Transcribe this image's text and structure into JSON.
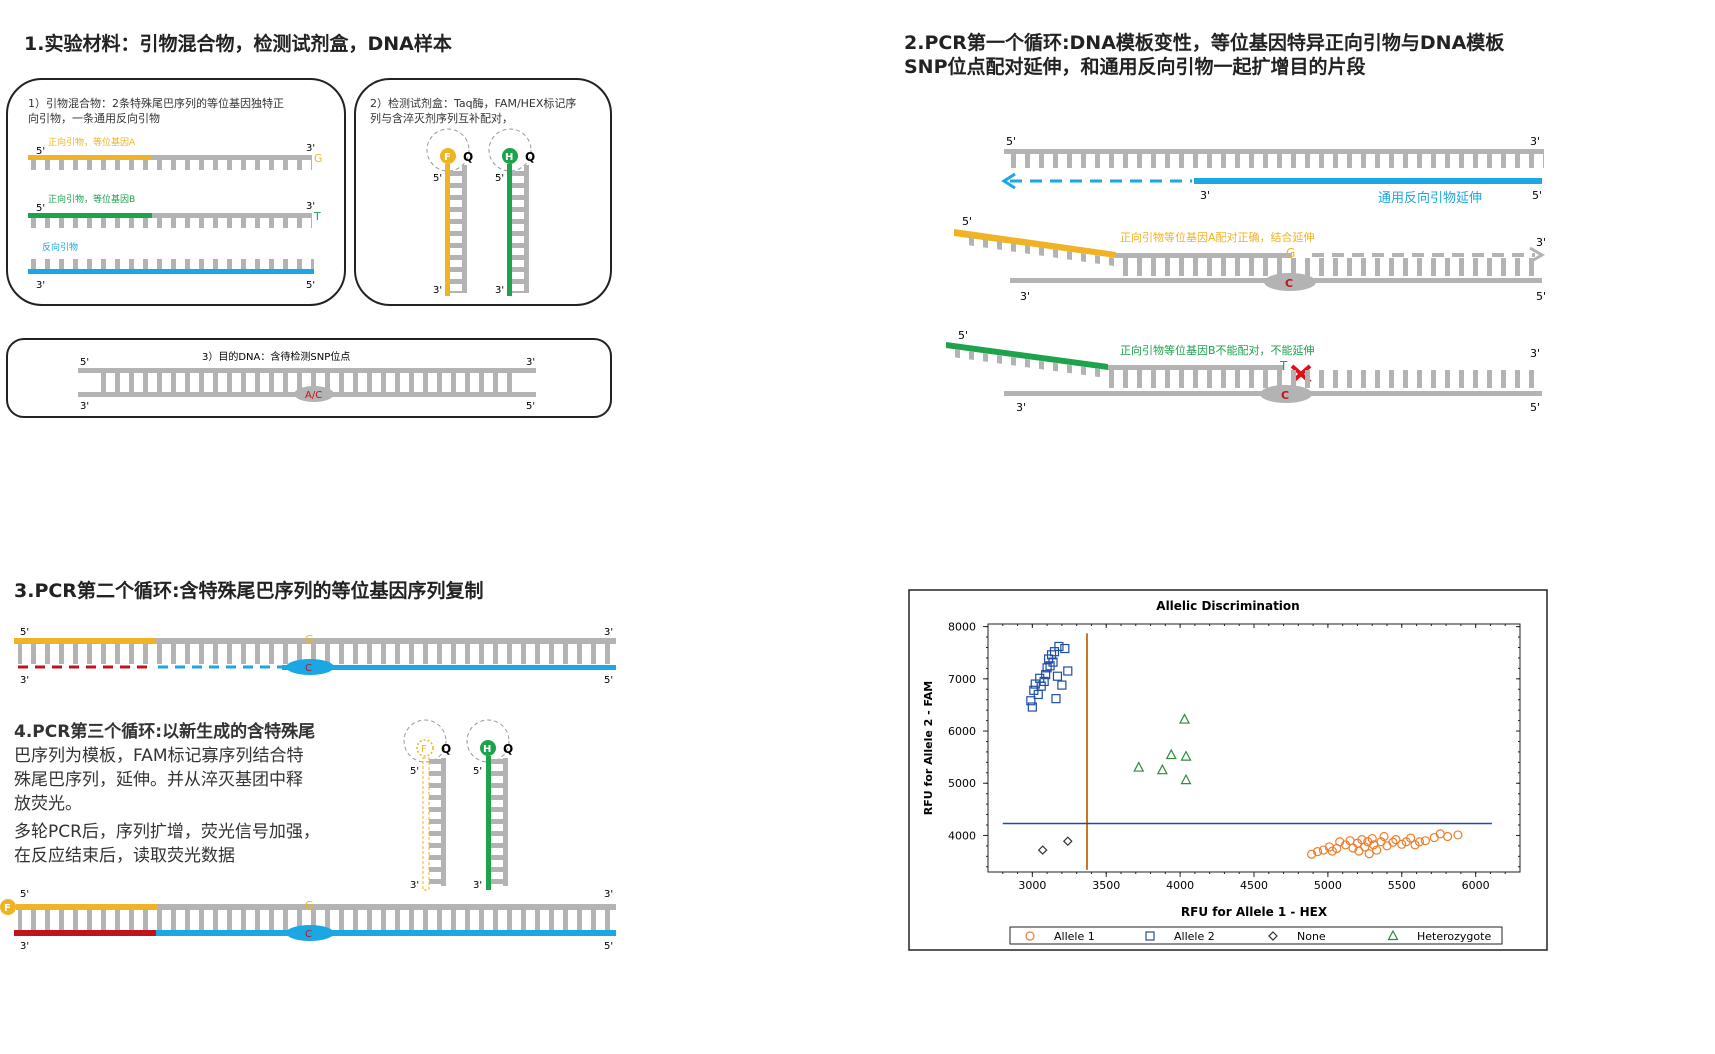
{
  "section1": {
    "title": "1.实验材料：引物混合物，检测试剂盒，DNA样本",
    "box1": {
      "desc_line1": "1）引物混合物：2条特殊尾巴序列的等位基因独特正",
      "desc_line2": "向引物，一条通用反向引物",
      "primer_a_label": "正向引物，等位基因A",
      "primer_a_end": "G",
      "primer_b_label": "正向引物，等位基因B",
      "primer_b_end": "T",
      "reverse_label": "反向引物"
    },
    "box2": {
      "desc_line1": "2）检测试剂盒：Taq酶，FAM/HEX标记序",
      "desc_line2": "列与含淬灭剂序列互补配对，",
      "fam": "F",
      "hex": "H",
      "quencher": "Q"
    },
    "box3": {
      "desc": "3）目的DNA：含待检测SNP位点",
      "snp": "A/C"
    }
  },
  "section2": {
    "title_line1": "2.PCR第一个循环:DNA模板变性，等位基因特异正向引物与DNA模板",
    "title_line2": "SNP位点配对延伸，和通用反向引物一起扩增目的片段",
    "reverse_ext_label": "通用反向引物延伸",
    "match_label": "正向引物等位基因A配对正确，结合延伸",
    "mismatch_label": "正向引物等位基因B不能配对，不能延伸",
    "base_g": "G",
    "base_t": "T",
    "base_c": "C"
  },
  "section3": {
    "title": "3.PCR第二个循环:含特殊尾巴序列的等位基因序列复制",
    "base_g": "G",
    "base_c": "C"
  },
  "section4": {
    "lines": [
      "4.PCR第三个循环:以新生成的含特殊尾",
      "巴序列为模板，FAM标记寡序列结合特",
      "殊尾巴序列，延伸。并从淬灭基团中释",
      "放荧光。"
    ],
    "lines2": [
      "多轮PCR后，序列扩增，荧光信号加强，",
      "在反应结束后，读取荧光数据"
    ],
    "fam": "F",
    "hex": "H",
    "quencher": "Q",
    "base_g": "G",
    "base_c": "C"
  },
  "ends": {
    "five": "5'",
    "three": "3'"
  },
  "colors": {
    "yellow": "#f0b323",
    "green": "#1ea24b",
    "blue": "#1ba7e3",
    "gray": "#b3b3b3",
    "red": "#c0141c",
    "navy": "#1e4ea0",
    "orange": "#ee7d2b",
    "darkgreen": "#2f8a3e"
  },
  "chart_data": {
    "type": "scatter",
    "title": "Allelic Discrimination",
    "xlabel": "RFU for Allele 1 - HEX",
    "ylabel": "RFU for Allele 2 - FAM",
    "xlim": [
      2700,
      6300
    ],
    "ylim": [
      3300,
      8050
    ],
    "xticks": [
      3000,
      3500,
      4000,
      4500,
      5000,
      5500,
      6000
    ],
    "yticks": [
      4000,
      5000,
      6000,
      7000,
      8000
    ],
    "threshold_x": 3370,
    "threshold_y": 4230,
    "legend_position": "bottom",
    "series": [
      {
        "name": "Allele 1",
        "marker": "circle",
        "color": "#ee7d2b",
        "points": [
          [
            4890,
            3640
          ],
          [
            4930,
            3690
          ],
          [
            4970,
            3720
          ],
          [
            5010,
            3780
          ],
          [
            5030,
            3700
          ],
          [
            5060,
            3750
          ],
          [
            5080,
            3880
          ],
          [
            5120,
            3820
          ],
          [
            5150,
            3900
          ],
          [
            5170,
            3760
          ],
          [
            5200,
            3850
          ],
          [
            5210,
            3700
          ],
          [
            5230,
            3920
          ],
          [
            5250,
            3780
          ],
          [
            5270,
            3880
          ],
          [
            5280,
            3650
          ],
          [
            5300,
            3940
          ],
          [
            5310,
            3820
          ],
          [
            5330,
            3720
          ],
          [
            5360,
            3880
          ],
          [
            5380,
            3980
          ],
          [
            5400,
            3800
          ],
          [
            5440,
            3870
          ],
          [
            5460,
            3920
          ],
          [
            5500,
            3830
          ],
          [
            5530,
            3880
          ],
          [
            5560,
            3950
          ],
          [
            5590,
            3820
          ],
          [
            5620,
            3880
          ],
          [
            5660,
            3900
          ],
          [
            5720,
            3960
          ],
          [
            5760,
            4030
          ],
          [
            5810,
            3980
          ],
          [
            5880,
            4010
          ]
        ]
      },
      {
        "name": "Allele 2",
        "marker": "square",
        "color": "#1e4ea0",
        "points": [
          [
            2990,
            6580
          ],
          [
            3000,
            6460
          ],
          [
            3010,
            6780
          ],
          [
            3020,
            6900
          ],
          [
            3040,
            6700
          ],
          [
            3050,
            7010
          ],
          [
            3060,
            6860
          ],
          [
            3080,
            6950
          ],
          [
            3090,
            7080
          ],
          [
            3100,
            7210
          ],
          [
            3110,
            7380
          ],
          [
            3120,
            7250
          ],
          [
            3130,
            7460
          ],
          [
            3140,
            7320
          ],
          [
            3150,
            7520
          ],
          [
            3160,
            6620
          ],
          [
            3170,
            7050
          ],
          [
            3180,
            7620
          ],
          [
            3200,
            6880
          ],
          [
            3220,
            7580
          ],
          [
            3240,
            7150
          ]
        ]
      },
      {
        "name": "None",
        "marker": "diamond",
        "color": "#333333",
        "points": [
          [
            3070,
            3720
          ],
          [
            3240,
            3890
          ]
        ]
      },
      {
        "name": "Heterozygote",
        "marker": "triangle",
        "color": "#2f8a3e",
        "points": [
          [
            3720,
            5300
          ],
          [
            3880,
            5250
          ],
          [
            3940,
            5540
          ],
          [
            4030,
            6220
          ],
          [
            4040,
            5510
          ],
          [
            4040,
            5060
          ]
        ]
      }
    ]
  }
}
